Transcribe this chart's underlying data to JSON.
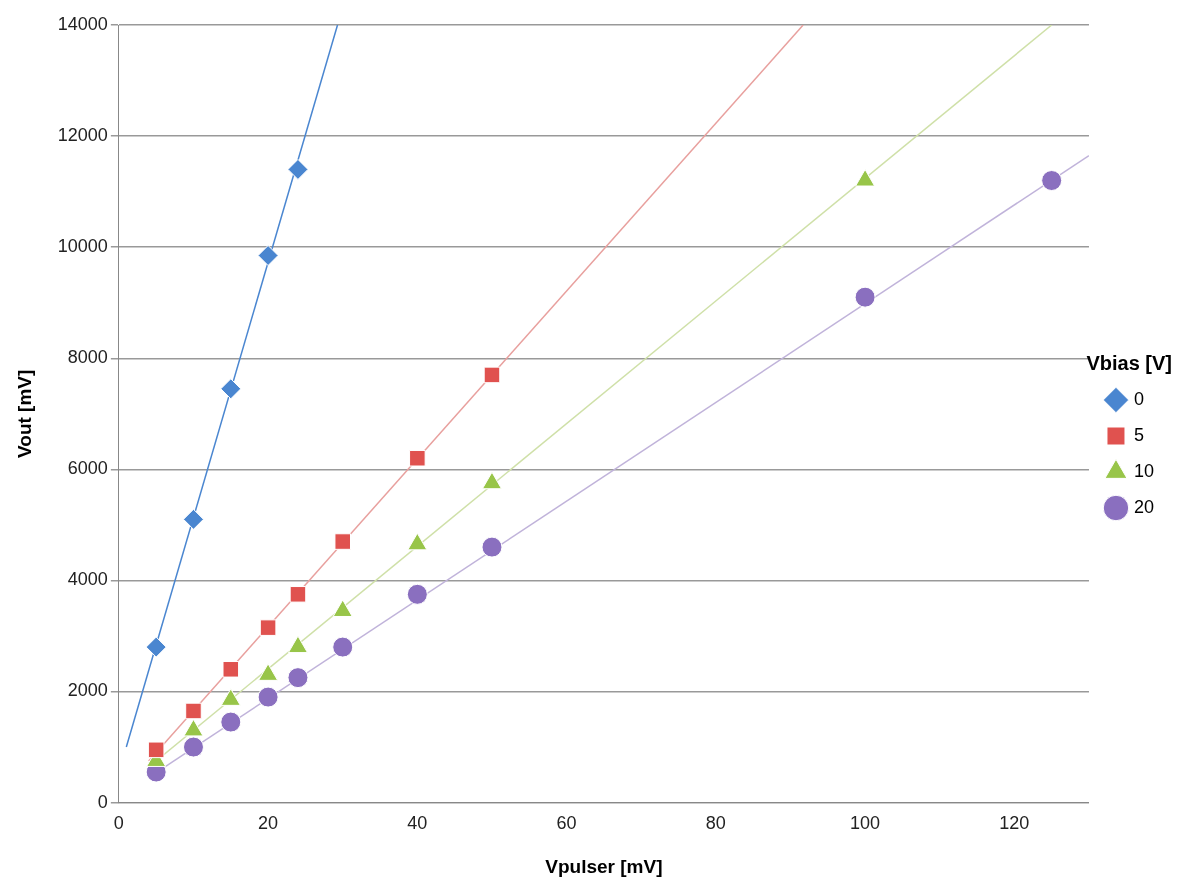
{
  "chart_data": {
    "type": "scatter",
    "xlabel": "Vpulser [mV]",
    "ylabel": "Vout [mV]",
    "legend_title": "Vbias [V]",
    "legend": "right",
    "grid": "y",
    "xlim": [
      0,
      130
    ],
    "xticks": [
      0,
      20,
      40,
      60,
      80,
      100,
      120
    ],
    "ylim": [
      0,
      14000
    ],
    "yticks": [
      0,
      2000,
      4000,
      6000,
      8000,
      10000,
      12000,
      14000
    ],
    "series": [
      {
        "name": "0",
        "color": "#4a86d0",
        "marker": "diamond",
        "x": [
          5,
          10,
          15,
          20,
          24
        ],
        "values": [
          2800,
          5100,
          7450,
          9850,
          11400
        ]
      },
      {
        "name": "5",
        "color": "#e0524f",
        "marker": "square",
        "x": [
          5,
          10,
          15,
          20,
          24,
          30,
          40,
          50
        ],
        "values": [
          950,
          1650,
          2400,
          3150,
          3750,
          4700,
          6200,
          7700
        ]
      },
      {
        "name": "10",
        "color": "#98c549",
        "marker": "triangle",
        "x": [
          5,
          10,
          15,
          20,
          24,
          30,
          40,
          50,
          100
        ],
        "values": [
          750,
          1300,
          1850,
          2300,
          2800,
          3450,
          4650,
          5750,
          11200
        ]
      },
      {
        "name": "20",
        "color": "#8a6fbf",
        "marker": "circle",
        "x": [
          5,
          10,
          15,
          20,
          24,
          30,
          40,
          50,
          100,
          125
        ],
        "values": [
          550,
          1000,
          1450,
          1900,
          2250,
          2800,
          3750,
          4600,
          9100,
          11200
        ]
      },
      {
        "type": "line",
        "color": "#4a86d0",
        "marker": "none",
        "x": [
          1,
          29.3
        ],
        "values": [
          1000,
          14000
        ]
      },
      {
        "type": "line",
        "color": "#e8a09e",
        "marker": "none",
        "x": [
          4,
          91.7
        ],
        "values": [
          750,
          14000
        ]
      },
      {
        "type": "line",
        "color": "#cfe0a8",
        "marker": "none",
        "x": [
          4,
          125
        ],
        "values": [
          640,
          14000
        ]
      },
      {
        "type": "line",
        "color": "#c0b3da",
        "marker": "none",
        "x": [
          4,
          130
        ],
        "values": [
          450,
          11650
        ]
      }
    ]
  }
}
